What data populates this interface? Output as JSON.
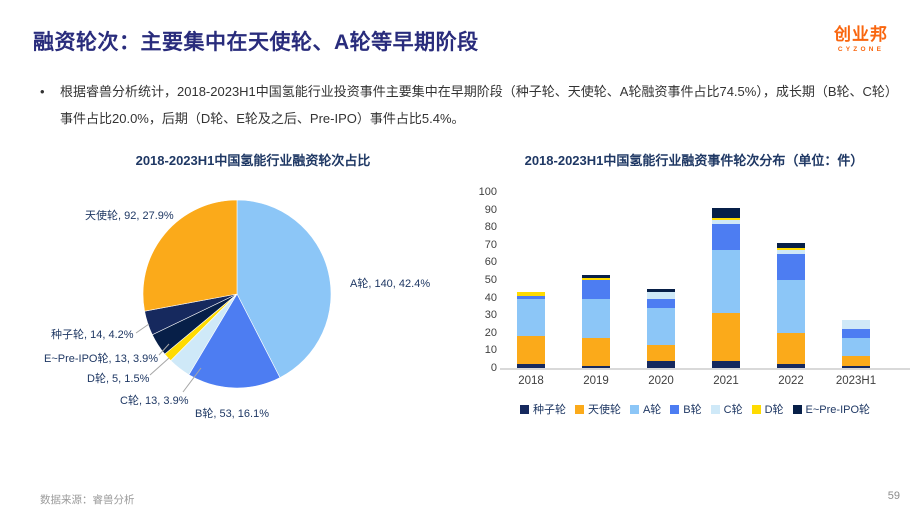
{
  "header": {
    "title": "融资轮次：主要集中在天使轮、A轮等早期阶段",
    "logo_text": "创业邦",
    "logo_sub": "CYZONE"
  },
  "bullet": {
    "marker": "•",
    "text": "根据睿兽分析统计，2018-2023H1中国氢能行业投资事件主要集中在早期阶段（种子轮、天使轮、A轮融资事件占比74.5%），成长期（B轮、C轮）事件占比20.0%，后期（D轮、E轮及之后、Pre-IPO）事件占比5.4%。"
  },
  "footer": {
    "source": "数据来源：睿兽分析",
    "page_number": "59"
  },
  "colors": {
    "slide_title": "#292c7c",
    "chart_title": "#1f3864",
    "logo_orange": "#f9660f",
    "axis_text": "#404040",
    "footer_gray": "#9b9b9b"
  },
  "chart_data": [
    {
      "type": "pie",
      "title": "2018-2023H1中国氢能行业融资轮次占比",
      "note": "slices listed clockwise from 12 o'clock",
      "slices": [
        {
          "name": "A轮",
          "value": 140,
          "pct": 42.4,
          "color": "#8cc6f7"
        },
        {
          "name": "B轮",
          "value": 53,
          "pct": 16.1,
          "color": "#4d7df2"
        },
        {
          "name": "C轮",
          "value": 13,
          "pct": 3.9,
          "color": "#cfe9f8"
        },
        {
          "name": "D轮",
          "value": 5,
          "pct": 1.5,
          "color": "#ffdb00"
        },
        {
          "name": "E~Pre-IPO轮",
          "value": 13,
          "pct": 3.9,
          "color": "#071f48"
        },
        {
          "name": "种子轮",
          "value": 14,
          "pct": 4.2,
          "color": "#16295e"
        },
        {
          "name": "天使轮",
          "value": 92,
          "pct": 27.9,
          "color": "#fbaa1a"
        }
      ],
      "labels": {
        "angel": "天使轮, 92, 27.9%",
        "a": "A轮, 140, 42.4%",
        "seed": "种子轮, 14, 4.2%",
        "e": "E~Pre-IPO轮, 13, 3.9%",
        "d": "D轮, 5, 1.5%",
        "c": "C轮, 13, 3.9%",
        "b": "B轮, 53, 16.1%"
      }
    },
    {
      "type": "bar",
      "subtype": "stacked",
      "title": "2018-2023H1中国氢能行业融资事件轮次分布（单位：件）",
      "categories": [
        "2018",
        "2019",
        "2020",
        "2021",
        "2022",
        "2023H1"
      ],
      "series": [
        {
          "name": "种子轮",
          "color": "#16295e",
          "values": [
            2,
            1,
            4,
            4,
            2,
            1
          ]
        },
        {
          "name": "天使轮",
          "color": "#fbaa1a",
          "values": [
            16,
            16,
            9,
            27,
            18,
            6
          ]
        },
        {
          "name": "A轮",
          "color": "#8cc6f7",
          "values": [
            21,
            22,
            21,
            36,
            30,
            10
          ]
        },
        {
          "name": "B轮",
          "color": "#4d7df2",
          "values": [
            2,
            11,
            5,
            15,
            15,
            5
          ]
        },
        {
          "name": "C轮",
          "color": "#cfe9f8",
          "values": [
            0,
            0,
            4,
            2,
            2,
            5
          ]
        },
        {
          "name": "D轮",
          "color": "#ffdb00",
          "values": [
            2,
            1,
            0,
            1,
            1,
            0
          ]
        },
        {
          "name": "E~Pre-IPO轮",
          "color": "#071f48",
          "values": [
            0,
            2,
            2,
            6,
            3,
            0
          ]
        }
      ],
      "ylim": [
        0,
        100
      ],
      "ytick_step": 10,
      "grid": false,
      "legend_position": "bottom"
    }
  ]
}
